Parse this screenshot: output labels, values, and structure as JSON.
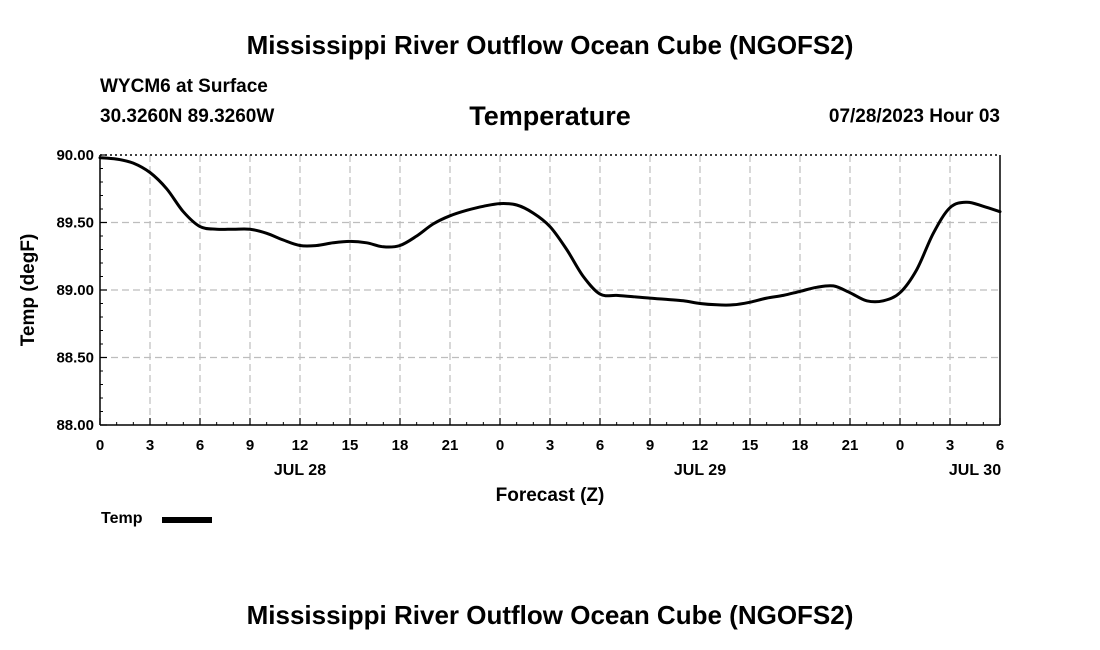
{
  "header": {
    "main_title": "Mississippi River Outflow Ocean Cube (NGOFS2)",
    "station": "WYCM6 at Surface",
    "coords": "30.3260N  89.3260W",
    "chart_title": "Temperature",
    "datetime": "07/28/2023 Hour 03"
  },
  "legend": {
    "label": "Temp",
    "color": "#000000"
  },
  "footer": {
    "repeat_title": "Mississippi River Outflow Ocean Cube (NGOFS2)"
  },
  "chart_data": {
    "type": "line",
    "title": "Temperature",
    "xlabel": "Forecast (Z)",
    "ylabel": "Temp (degF)",
    "xlim": [
      0,
      54
    ],
    "ylim": [
      88.0,
      90.0
    ],
    "grid": true,
    "x_tick_values": [
      0,
      3,
      6,
      9,
      12,
      15,
      18,
      21,
      24,
      27,
      30,
      33,
      36,
      39,
      42,
      45,
      48,
      51,
      54
    ],
    "x_tick_labels": [
      "0",
      "3",
      "6",
      "9",
      "12",
      "15",
      "18",
      "21",
      "0",
      "3",
      "6",
      "9",
      "12",
      "15",
      "18",
      "21",
      "0",
      "3",
      "6"
    ],
    "day_labels": [
      {
        "x": 12,
        "label": "JUL 28"
      },
      {
        "x": 36,
        "label": "JUL 29"
      },
      {
        "x": 52.5,
        "label": "JUL 30"
      }
    ],
    "y_tick_values": [
      88.0,
      88.5,
      89.0,
      89.5,
      90.0
    ],
    "y_tick_labels": [
      "88.00",
      "88.50",
      "89.00",
      "89.50",
      "90.00"
    ],
    "series": [
      {
        "name": "Temp",
        "color": "#000000",
        "x": [
          0,
          1,
          2,
          3,
          4,
          5,
          6,
          7,
          8,
          9,
          10,
          11,
          12,
          13,
          14,
          15,
          16,
          17,
          18,
          19,
          20,
          21,
          22,
          23,
          24,
          25,
          26,
          27,
          28,
          29,
          30,
          31,
          32,
          33,
          34,
          35,
          36,
          37,
          38,
          39,
          40,
          41,
          42,
          43,
          44,
          45,
          46,
          47,
          48,
          49,
          50,
          51,
          52,
          53,
          54
        ],
        "values": [
          89.98,
          89.97,
          89.94,
          89.87,
          89.75,
          89.58,
          89.47,
          89.45,
          89.45,
          89.45,
          89.42,
          89.37,
          89.33,
          89.33,
          89.35,
          89.36,
          89.35,
          89.32,
          89.33,
          89.4,
          89.49,
          89.55,
          89.59,
          89.62,
          89.64,
          89.63,
          89.57,
          89.47,
          89.3,
          89.1,
          88.97,
          88.96,
          88.95,
          88.94,
          88.93,
          88.92,
          88.9,
          88.89,
          88.89,
          88.91,
          88.94,
          88.96,
          88.99,
          89.02,
          89.03,
          88.98,
          88.92,
          88.92,
          88.98,
          89.15,
          89.42,
          89.61,
          89.65,
          89.62,
          89.58
        ]
      }
    ]
  }
}
